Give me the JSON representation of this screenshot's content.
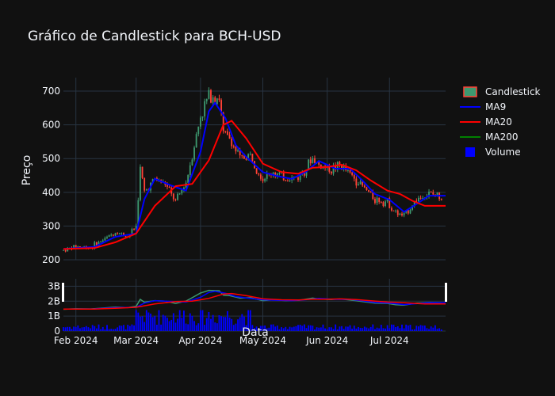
{
  "chart_data": {
    "type": "candlestick",
    "title": "Gráfico de Candlestick para BCH-USD",
    "ylabel": "Preço",
    "xlabel": "Data",
    "price_axis": {
      "range": [
        200,
        740
      ],
      "ticks": [
        200,
        300,
        400,
        500,
        600,
        700
      ]
    },
    "volume_axis": {
      "range": [
        0,
        3.5
      ],
      "ticks": [
        0,
        1,
        2,
        3
      ],
      "tick_labels": [
        "0",
        "1B",
        "2B",
        "3B"
      ]
    },
    "x_range": [
      "2024-01-26",
      "2024-07-28"
    ],
    "x_ticks": [
      {
        "date": "2024-02-01",
        "label": "Feb 2024"
      },
      {
        "date": "2024-03-01",
        "label": "Mar 2024"
      },
      {
        "date": "2024-04-01",
        "label": "Apr 2024"
      },
      {
        "date": "2024-05-01",
        "label": "May 2024"
      },
      {
        "date": "2024-06-01",
        "label": "Jun 2024"
      },
      {
        "date": "2024-07-01",
        "label": "Jul 2024"
      }
    ],
    "close_path": [
      [
        "2024-01-26",
        228
      ],
      [
        "2024-02-01",
        240
      ],
      [
        "2024-02-08",
        236
      ],
      [
        "2024-02-15",
        262
      ],
      [
        "2024-02-20",
        282
      ],
      [
        "2024-02-26",
        270
      ],
      [
        "2024-03-01",
        300
      ],
      [
        "2024-03-03",
        470
      ],
      [
        "2024-03-05",
        400
      ],
      [
        "2024-03-10",
        440
      ],
      [
        "2024-03-15",
        425
      ],
      [
        "2024-03-20",
        372
      ],
      [
        "2024-03-25",
        430
      ],
      [
        "2024-03-28",
        510
      ],
      [
        "2024-04-01",
        625
      ],
      [
        "2024-04-05",
        690
      ],
      [
        "2024-04-10",
        680
      ],
      [
        "2024-04-12",
        575
      ],
      [
        "2024-04-15",
        560
      ],
      [
        "2024-04-20",
        500
      ],
      [
        "2024-04-25",
        510
      ],
      [
        "2024-05-01",
        440
      ],
      [
        "2024-05-06",
        460
      ],
      [
        "2024-05-12",
        440
      ],
      [
        "2024-05-18",
        445
      ],
      [
        "2024-05-25",
        500
      ],
      [
        "2024-05-28",
        480
      ],
      [
        "2024-06-03",
        468
      ],
      [
        "2024-06-07",
        480
      ],
      [
        "2024-06-12",
        455
      ],
      [
        "2024-06-18",
        418
      ],
      [
        "2024-06-24",
        380
      ],
      [
        "2024-06-30",
        372
      ],
      [
        "2024-07-04",
        338
      ],
      [
        "2024-07-08",
        330
      ],
      [
        "2024-07-14",
        380
      ],
      [
        "2024-07-20",
        395
      ],
      [
        "2024-07-26",
        388
      ]
    ],
    "ma9": [
      [
        "2024-01-26",
        232
      ],
      [
        "2024-02-10",
        238
      ],
      [
        "2024-02-20",
        268
      ],
      [
        "2024-03-01",
        278
      ],
      [
        "2024-03-05",
        380
      ],
      [
        "2024-03-10",
        440
      ],
      [
        "2024-03-18",
        420
      ],
      [
        "2024-03-25",
        405
      ],
      [
        "2024-04-01",
        520
      ],
      [
        "2024-04-05",
        640
      ],
      [
        "2024-04-08",
        665
      ],
      [
        "2024-04-13",
        620
      ],
      [
        "2024-04-18",
        540
      ],
      [
        "2024-04-23",
        505
      ],
      [
        "2024-05-01",
        460
      ],
      [
        "2024-05-08",
        448
      ],
      [
        "2024-05-15",
        440
      ],
      [
        "2024-05-22",
        462
      ],
      [
        "2024-05-28",
        493
      ],
      [
        "2024-06-05",
        470
      ],
      [
        "2024-06-12",
        470
      ],
      [
        "2024-06-18",
        435
      ],
      [
        "2024-06-24",
        395
      ],
      [
        "2024-07-01",
        378
      ],
      [
        "2024-07-08",
        342
      ],
      [
        "2024-07-14",
        365
      ],
      [
        "2024-07-20",
        390
      ],
      [
        "2024-07-28",
        390
      ]
    ],
    "ma20": [
      [
        "2024-01-26",
        232
      ],
      [
        "2024-02-10",
        235
      ],
      [
        "2024-02-20",
        252
      ],
      [
        "2024-03-01",
        278
      ],
      [
        "2024-03-10",
        360
      ],
      [
        "2024-03-20",
        418
      ],
      [
        "2024-03-28",
        425
      ],
      [
        "2024-04-05",
        495
      ],
      [
        "2024-04-12",
        600
      ],
      [
        "2024-04-16",
        612
      ],
      [
        "2024-04-23",
        560
      ],
      [
        "2024-05-01",
        485
      ],
      [
        "2024-05-10",
        460
      ],
      [
        "2024-05-18",
        455
      ],
      [
        "2024-05-25",
        473
      ],
      [
        "2024-06-01",
        475
      ],
      [
        "2024-06-08",
        482
      ],
      [
        "2024-06-15",
        465
      ],
      [
        "2024-06-22",
        435
      ],
      [
        "2024-06-30",
        405
      ],
      [
        "2024-07-06",
        395
      ],
      [
        "2024-07-12",
        375
      ],
      [
        "2024-07-18",
        360
      ],
      [
        "2024-07-28",
        360
      ]
    ],
    "legend": [
      {
        "label": "Candlestick",
        "color": "#3D9970",
        "marker": "candle"
      },
      {
        "label": "MA9",
        "color": "#0000ff",
        "marker": "line"
      },
      {
        "label": "MA20",
        "color": "#ff0000",
        "marker": "line"
      },
      {
        "label": "MA200",
        "color": "#008000",
        "marker": "line"
      },
      {
        "label": "Volume",
        "color": "#0000ff",
        "marker": "square"
      }
    ],
    "colors": {
      "increasing": "#3D9970",
      "decreasing": "#FF4136",
      "background": "#111111",
      "grid": "#283442"
    },
    "grid": true
  }
}
